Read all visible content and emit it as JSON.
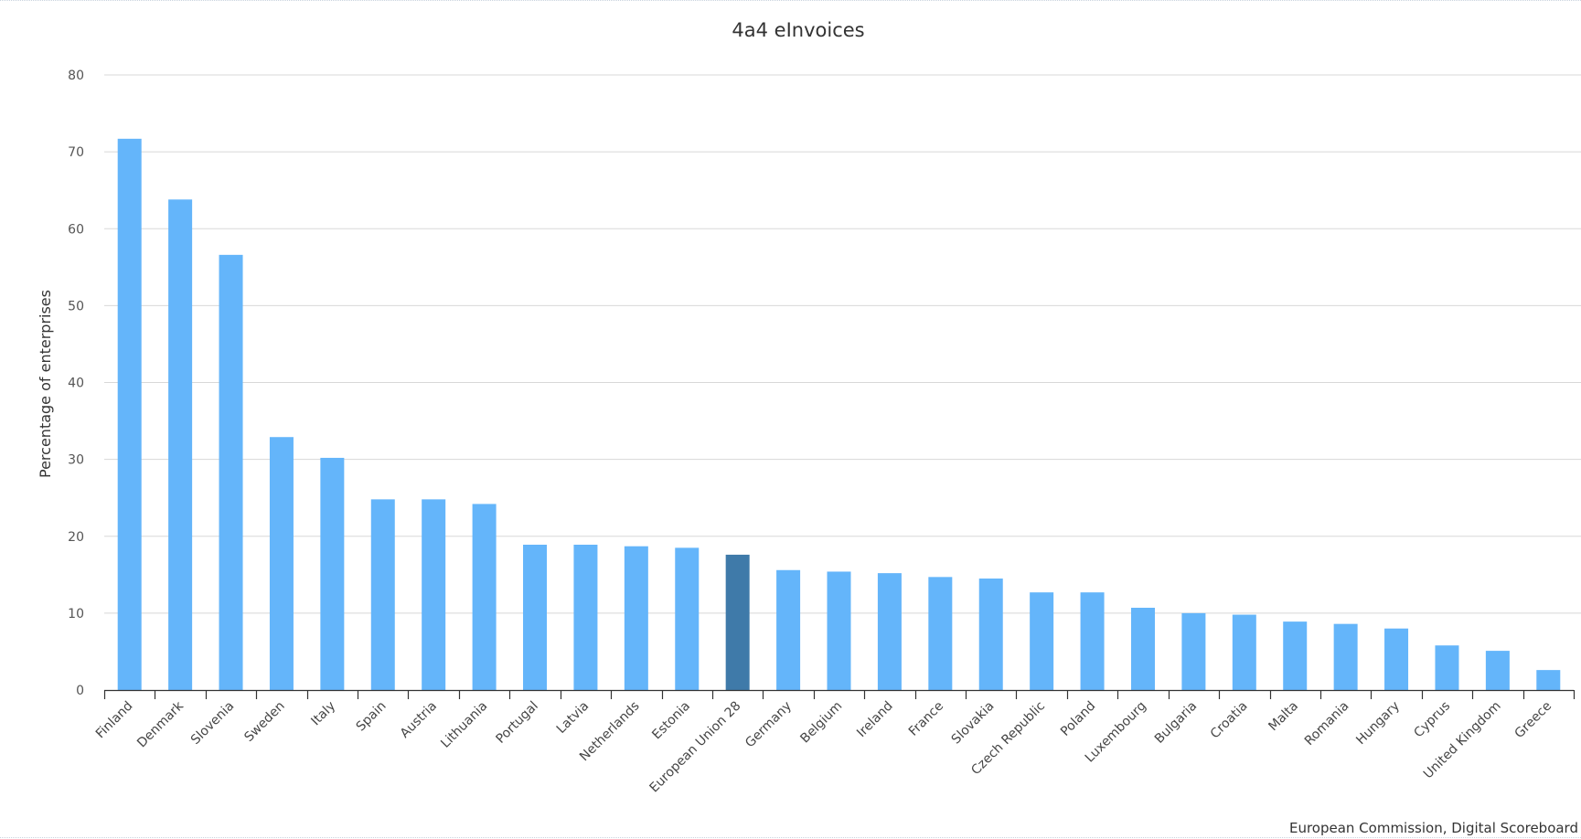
{
  "chart_data": {
    "type": "bar",
    "title": "4a4 eInvoices",
    "xlabel": "",
    "ylabel": "Percentage of enterprises",
    "ylim": [
      0,
      80
    ],
    "yticks": [
      0,
      10,
      20,
      30,
      40,
      50,
      60,
      70,
      80
    ],
    "grid": true,
    "legend": "none",
    "credit": "European Commission, Digital Scoreboard",
    "bar_color": "#64b5fa",
    "highlight_color": "#3f7aa9",
    "grid_color": "#d8d8d8",
    "categories": [
      "Finland",
      "Denmark",
      "Slovenia",
      "Sweden",
      "Italy",
      "Spain",
      "Austria",
      "Lithuania",
      "Portugal",
      "Latvia",
      "Netherlands",
      "Estonia",
      "European Union 28",
      "Germany",
      "Belgium",
      "Ireland",
      "France",
      "Slovakia",
      "Czech Republic",
      "Poland",
      "Luxembourg",
      "Bulgaria",
      "Croatia",
      "Malta",
      "Romania",
      "Hungary",
      "Cyprus",
      "United Kingdom",
      "Greece"
    ],
    "values": [
      71.7,
      63.8,
      56.6,
      32.9,
      30.2,
      24.8,
      24.8,
      24.2,
      18.9,
      18.9,
      18.7,
      18.5,
      17.6,
      15.6,
      15.4,
      15.2,
      14.7,
      14.5,
      12.7,
      12.7,
      10.7,
      10.0,
      9.8,
      8.9,
      8.6,
      8.0,
      5.8,
      5.1,
      2.6
    ],
    "highlight": [
      "European Union 28"
    ]
  }
}
